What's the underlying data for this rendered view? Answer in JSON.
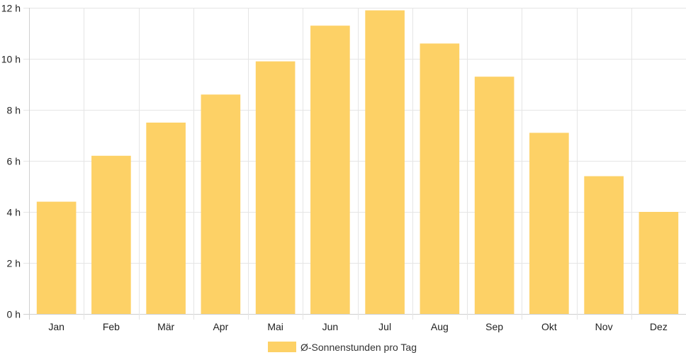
{
  "chart_data": {
    "type": "bar",
    "categories": [
      "Jan",
      "Feb",
      "Mär",
      "Apr",
      "Mai",
      "Jun",
      "Jul",
      "Aug",
      "Sep",
      "Okt",
      "Nov",
      "Dez"
    ],
    "series": [
      {
        "name": "Ø-Sonnenstunden pro Tag",
        "values": [
          4.4,
          6.2,
          7.5,
          8.6,
          9.9,
          11.3,
          11.9,
          10.6,
          9.3,
          7.1,
          5.4,
          4.0
        ],
        "color": "#fdd166"
      }
    ],
    "y_ticks": [
      0,
      2,
      4,
      6,
      8,
      10,
      12
    ],
    "y_tick_suffix": " h",
    "ylim": [
      0,
      12
    ],
    "grid": true,
    "legend_position": "bottom"
  }
}
